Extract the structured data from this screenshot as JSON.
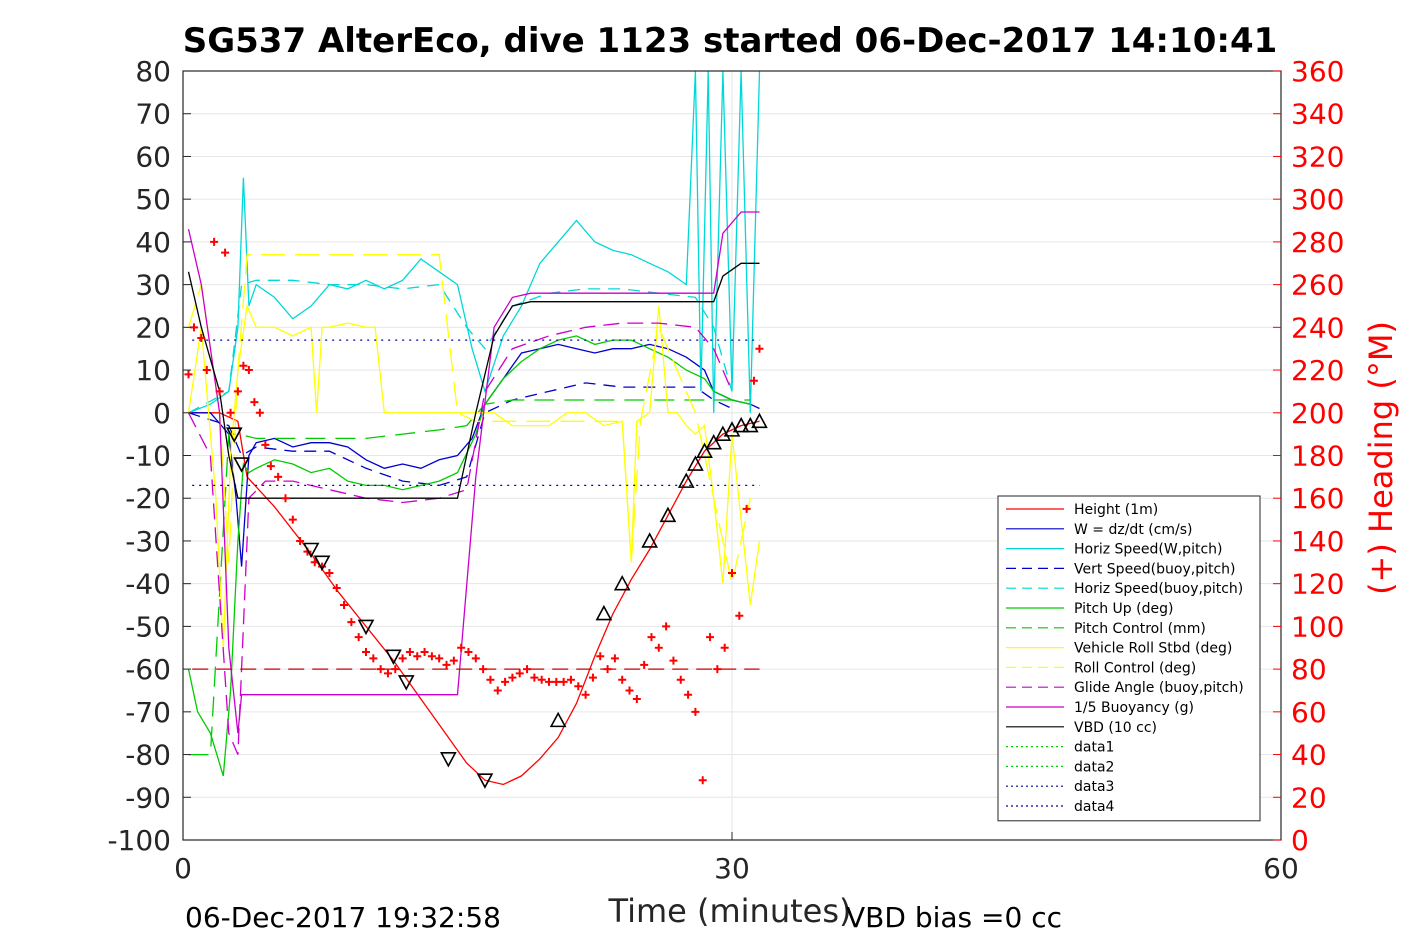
{
  "chart_data": {
    "type": "line",
    "title": "SG537 AlterEco, dive 1123 started 06-Dec-2017 14:10:41",
    "xlabel": "Time (minutes)",
    "ylabel": "",
    "y2label": "(+) Heading (°M)",
    "xlim": [
      0,
      60
    ],
    "ylim": [
      -100,
      80
    ],
    "y2lim": [
      0,
      360
    ],
    "xticks": [
      "0",
      "30",
      "60"
    ],
    "yticks": [
      "80",
      "70",
      "60",
      "50",
      "40",
      "30",
      "20",
      "10",
      "0",
      "-10",
      "-20",
      "-30",
      "-40",
      "-50",
      "-60",
      "-70",
      "-80",
      "-90",
      "-100"
    ],
    "y2ticks": [
      "360",
      "340",
      "320",
      "300",
      "280",
      "260",
      "240",
      "220",
      "200",
      "180",
      "160",
      "140",
      "120",
      "100",
      "80",
      "60",
      "40",
      "20",
      "0"
    ],
    "footer_left": "06-Dec-2017 19:32:58",
    "footer_right": "VBD bias =0 cc",
    "legend": [
      {
        "label": "Height (1m)",
        "color": "#ff0000",
        "style": "solid"
      },
      {
        "label": "W = dz/dt (cm/s)",
        "color": "#0000cc",
        "style": "solid"
      },
      {
        "label": "Horiz Speed(W,pitch)",
        "color": "#00d8d8",
        "style": "solid"
      },
      {
        "label": "Vert Speed(buoy,pitch)",
        "color": "#0000cc",
        "style": "dashed"
      },
      {
        "label": "Horiz Speed(buoy,pitch)",
        "color": "#00d8d8",
        "style": "dashed"
      },
      {
        "label": "Pitch Up (deg)",
        "color": "#00cc00",
        "style": "solid"
      },
      {
        "label": "Pitch Control (mm)",
        "color": "#00cc00",
        "style": "dashed"
      },
      {
        "label": "Vehicle Roll Stbd (deg)",
        "color": "#ffff00",
        "style": "solid"
      },
      {
        "label": "Roll Control (deg)",
        "color": "#ffff00",
        "style": "dashed"
      },
      {
        "label": "Glide Angle (buoy,pitch)",
        "color": "#cc00cc",
        "style": "dashed"
      },
      {
        "label": "1/5 Buoyancy (g)",
        "color": "#cc00cc",
        "style": "solid"
      },
      {
        "label": "VBD (10 cc)",
        "color": "#000000",
        "style": "solid"
      },
      {
        "label": "data1",
        "color": "#00cc00",
        "style": "dotted"
      },
      {
        "label": "data2",
        "color": "#00cc00",
        "style": "dotted"
      },
      {
        "label": "data3",
        "color": "#0000aa",
        "style": "dotted"
      },
      {
        "label": "data4",
        "color": "#0000aa",
        "style": "dotted"
      }
    ],
    "series": [
      {
        "name": "Height (1m)",
        "color": "#ff0000",
        "dash": "",
        "axis": "left",
        "x": [
          0.3,
          1.0,
          2.0,
          3.0,
          3.5,
          5.0,
          7.0,
          8.5,
          10.0,
          11.5,
          13.0,
          14.5,
          15.5,
          16.5,
          17.5,
          18.5,
          19.5,
          20.5,
          21.5,
          22.5,
          23.5,
          24.5,
          25.5,
          26.5,
          27.5,
          28.5,
          29.5,
          30.5,
          31.5
        ],
        "y": [
          0,
          0,
          0,
          -2,
          -15,
          -22,
          -33,
          -42,
          -50,
          -58,
          -67,
          -76,
          -82,
          -86,
          -87,
          -85,
          -81,
          -76,
          -68,
          -57,
          -47,
          -39,
          -32,
          -24,
          -16,
          -9,
          -5,
          -3,
          -2
        ]
      },
      {
        "name": "W = dz/dt (cm/s)",
        "color": "#0000cc",
        "dash": "",
        "axis": "left",
        "x": [
          0.3,
          1.5,
          2.5,
          2.9,
          3.2,
          3.6,
          4.0,
          5.0,
          6.0,
          7.0,
          8.0,
          9.0,
          10.0,
          11.0,
          12.0,
          13.0,
          14.0,
          15.0,
          15.8,
          16.5,
          17.5,
          18.5,
          19.5,
          20.5,
          21.5,
          22.5,
          23.5,
          24.5,
          25.5,
          26.5,
          27.5,
          28.5,
          29.0,
          30.0,
          31.0,
          31.5
        ],
        "y": [
          0,
          0,
          -5,
          -20,
          -36,
          -10,
          -7,
          -6,
          -8,
          -7,
          -7,
          -8,
          -11,
          -13,
          -12,
          -13,
          -11,
          -10,
          -6,
          2,
          8,
          14,
          15,
          16,
          15,
          14,
          15,
          15,
          16,
          15,
          13,
          10,
          5,
          3,
          2,
          1
        ]
      },
      {
        "name": "Horiz Speed(W,pitch)",
        "color": "#00d8d8",
        "dash": "",
        "axis": "left",
        "x": [
          0.3,
          1.5,
          2.5,
          3.0,
          3.3,
          3.6,
          4.0,
          5.0,
          6.0,
          7.0,
          8.0,
          9.0,
          10.0,
          11.0,
          12.0,
          13.0,
          14.0,
          15.0,
          15.8,
          16.5,
          17.5,
          18.5,
          19.5,
          20.5,
          21.5,
          22.5,
          23.5,
          24.5,
          25.5,
          26.5,
          27.5,
          28.0,
          28.3,
          28.7,
          29.0,
          29.5,
          30.0,
          30.5,
          31.0,
          31.5
        ],
        "y": [
          0,
          2,
          5,
          20,
          55,
          25,
          30,
          27,
          22,
          25,
          30,
          29,
          31,
          29,
          31,
          36,
          33,
          30,
          15,
          5,
          18,
          25,
          35,
          40,
          45,
          40,
          38,
          37,
          35,
          33,
          30,
          80,
          5,
          80,
          0,
          80,
          5,
          80,
          0,
          80
        ]
      },
      {
        "name": "Vert Speed(buoy,pitch)",
        "color": "#0000cc",
        "dash": "12,8",
        "axis": "left",
        "x": [
          0.3,
          2.5,
          3.2,
          4.0,
          6.0,
          8.0,
          10.0,
          12.0,
          14.0,
          15.5,
          16.5,
          18.0,
          20.0,
          22.0,
          24.0,
          26.0,
          28.0,
          29.0,
          30.0
        ],
        "y": [
          0,
          -3,
          -10,
          -8,
          -9,
          -9,
          -13,
          -16,
          -17,
          -15,
          0,
          3,
          5,
          7,
          6,
          6,
          6,
          3,
          1
        ]
      },
      {
        "name": "Horiz Speed(buoy,pitch)",
        "color": "#00d8d8",
        "dash": "12,8",
        "axis": "left",
        "x": [
          0.3,
          2.5,
          3.2,
          4.0,
          6.0,
          8.0,
          10.0,
          12.0,
          14.0,
          15.5,
          16.5,
          18.0,
          20.0,
          22.0,
          24.0,
          26.0,
          28.0,
          29.0,
          30.0
        ],
        "y": [
          0,
          5,
          30,
          31,
          31,
          30,
          30,
          29,
          30,
          20,
          15,
          25,
          28,
          29,
          29,
          28,
          27,
          20,
          5
        ]
      },
      {
        "name": "Pitch Up (deg)",
        "color": "#00cc00",
        "dash": "",
        "axis": "left",
        "x": [
          0.3,
          0.8,
          1.5,
          2.2,
          2.6,
          3.0,
          3.3,
          3.6,
          4.0,
          5.0,
          6.0,
          7.0,
          8.0,
          9.0,
          10.0,
          11.0,
          12.0,
          13.0,
          14.0,
          15.0,
          16.0,
          16.5,
          17.5,
          18.5,
          19.5,
          20.5,
          21.5,
          22.5,
          23.5,
          24.5,
          25.5,
          26.5,
          27.5,
          28.5,
          29.0,
          30.0,
          31.0
        ],
        "y": [
          -60,
          -70,
          -75,
          -85,
          -65,
          -30,
          -12,
          -14,
          -13,
          -11,
          -12,
          -14,
          -13,
          -16,
          -17,
          -17,
          -18,
          -17,
          -16,
          -14,
          -5,
          2,
          8,
          12,
          15,
          17,
          18,
          16,
          17,
          17,
          15,
          13,
          10,
          8,
          5,
          3,
          2
        ]
      },
      {
        "name": "Pitch Control (mm)",
        "color": "#00cc00",
        "dash": "20,10",
        "axis": "left",
        "x": [
          0.3,
          1.5,
          2.5,
          3.0,
          4.0,
          6.0,
          8.0,
          10.0,
          12.0,
          14.0,
          15.5,
          16.5,
          18.0,
          20.0,
          22.0,
          24.0,
          26.0,
          28.0,
          29.0,
          30.0,
          31.0
        ],
        "y": [
          -80,
          -80,
          -5,
          -5,
          -6,
          -6,
          -6,
          -6,
          -5,
          -4,
          -3,
          2,
          3,
          3,
          3,
          3,
          3,
          3,
          3,
          3,
          3
        ]
      },
      {
        "name": "Vehicle Roll Stbd (deg)",
        "color": "#ffff00",
        "dash": "",
        "axis": "left",
        "x": [
          0.3,
          1.0,
          1.8,
          2.2,
          2.6,
          3.0,
          3.5,
          4.0,
          5.0,
          6.0,
          7.0,
          7.3,
          7.6,
          8.0,
          9.0,
          10.0,
          10.5,
          11.0,
          12.0,
          13.0,
          14.0,
          15.0,
          16.0,
          17.0,
          18.0,
          19.0,
          20.0,
          21.0,
          22.0,
          23.0,
          24.0,
          24.5,
          24.8,
          25.5,
          26.0,
          26.5,
          27.0,
          27.5,
          28.0,
          28.5,
          29.0,
          29.5,
          30.0,
          30.5,
          31.0,
          31.5
        ],
        "y": [
          0,
          20,
          -20,
          -55,
          -10,
          10,
          25,
          20,
          20,
          18,
          20,
          0,
          20,
          20,
          21,
          20,
          20,
          0,
          0,
          0,
          0,
          0,
          0,
          0,
          -3,
          -3,
          -3,
          0,
          0,
          -3,
          -2,
          -35,
          -2,
          0,
          25,
          0,
          0,
          -3,
          -5,
          -3,
          -20,
          -40,
          -5,
          -25,
          -45,
          -30
        ]
      },
      {
        "name": "Roll Control (deg)",
        "color": "#ffff00",
        "dash": "24,10",
        "axis": "left",
        "x": [
          0.3,
          1.0,
          2.0,
          2.5,
          3.0,
          3.5,
          4.0,
          6.0,
          8.0,
          10.0,
          12.0,
          14.0,
          15.0,
          16.0,
          18.0,
          20.0,
          22.0,
          24.0,
          24.5,
          25.0,
          26.0,
          28.0,
          29.0,
          30.0,
          31.0
        ],
        "y": [
          20,
          30,
          0,
          -35,
          10,
          37,
          37,
          37,
          37,
          37,
          37,
          37,
          0,
          -2,
          -2,
          -2,
          -2,
          -2,
          -35,
          -2,
          20,
          0,
          -20,
          -40,
          -20
        ]
      },
      {
        "name": "Glide Angle (buoy,pitch)",
        "color": "#cc00cc",
        "dash": "16,8",
        "axis": "left",
        "x": [
          0.3,
          1.5,
          2.5,
          3.0,
          3.6,
          4.5,
          6.0,
          8.0,
          10.0,
          12.0,
          14.0,
          15.5,
          16.5,
          18.0,
          20.0,
          22.0,
          24.0,
          26.0,
          28.0,
          29.0,
          30.0
        ],
        "y": [
          0,
          -10,
          -75,
          -80,
          -20,
          -16,
          -16,
          -18,
          -20,
          -21,
          -20,
          -18,
          5,
          15,
          18,
          20,
          21,
          21,
          20,
          15,
          5
        ]
      },
      {
        "name": "1/5 Buoyancy (g)",
        "color": "#cc00cc",
        "dash": "",
        "axis": "left",
        "x": [
          0.3,
          1.0,
          2.0,
          2.5,
          3.0,
          3.2,
          5.0,
          8.0,
          10.0,
          12.0,
          14.0,
          15.0,
          16.0,
          17.0,
          18.0,
          19.0,
          20.0,
          22.0,
          24.0,
          26.0,
          28.0,
          29.0,
          29.5,
          30.5,
          31.0,
          31.5
        ],
        "y": [
          43,
          30,
          0,
          -55,
          -75,
          -66,
          -66,
          -66,
          -66,
          -66,
          -66,
          -66,
          -15,
          20,
          27,
          28,
          28,
          28,
          28,
          28,
          28,
          28,
          42,
          47,
          47,
          47
        ]
      },
      {
        "name": "VBD (10 cc)",
        "color": "#000000",
        "dash": "",
        "axis": "left",
        "x": [
          0.3,
          1.0,
          2.0,
          2.5,
          3.0,
          5.0,
          8.0,
          10.0,
          12.0,
          14.0,
          15.0,
          16.0,
          17.0,
          18.0,
          19.0,
          20.0,
          22.0,
          24.0,
          26.0,
          28.0,
          29.0,
          29.5,
          30.5,
          31.0,
          31.5
        ],
        "y": [
          33,
          20,
          5,
          -10,
          -20,
          -20,
          -20,
          -20,
          -20,
          -20,
          -20,
          0,
          18,
          25,
          26,
          26,
          26,
          26,
          26,
          26,
          26,
          32,
          35,
          35,
          35
        ]
      },
      {
        "name": "data1",
        "color": "#00cc00",
        "dash": "2,5",
        "axis": "left",
        "x": [],
        "y": []
      },
      {
        "name": "data2",
        "color": "#00cc00",
        "dash": "2,5",
        "axis": "left",
        "x": [],
        "y": []
      },
      {
        "name": "data3",
        "color": "#0000aa",
        "dash": "2,5",
        "axis": "left",
        "x": [
          0.5,
          31.5
        ],
        "y": [
          17,
          17
        ]
      },
      {
        "name": "data4",
        "color": "#0000aa",
        "dash": "2,5",
        "axis": "left",
        "x": [
          0.5,
          31.5
        ],
        "y": [
          -17,
          -17
        ]
      },
      {
        "name": "",
        "color": "#cc0000",
        "dash": "16,8",
        "axis": "left",
        "x": [
          0.5,
          31.5
        ],
        "y": [
          -60,
          -60
        ]
      }
    ],
    "heading_points": {
      "color": "#ff0000",
      "axis": "right",
      "x": [
        0.3,
        0.6,
        1.0,
        1.3,
        1.7,
        2.0,
        2.3,
        2.6,
        3.0,
        3.3,
        3.6,
        3.9,
        4.2,
        4.5,
        4.8,
        5.2,
        5.6,
        6.0,
        6.4,
        6.8,
        7.2,
        7.6,
        8.0,
        8.4,
        8.8,
        9.2,
        9.6,
        10.0,
        10.4,
        10.8,
        11.2,
        11.6,
        12.0,
        12.4,
        12.8,
        13.2,
        13.6,
        14.0,
        14.4,
        14.8,
        15.2,
        15.6,
        16.0,
        16.4,
        16.8,
        17.2,
        17.6,
        18.0,
        18.4,
        18.8,
        19.2,
        19.6,
        20.0,
        20.4,
        20.8,
        21.2,
        21.6,
        22.0,
        22.4,
        22.8,
        23.2,
        23.6,
        24.0,
        24.4,
        24.8,
        25.2,
        25.6,
        26.0,
        26.4,
        26.8,
        27.2,
        27.6,
        28.0,
        28.4,
        28.8,
        29.2,
        29.6,
        30.0,
        30.4,
        30.8,
        31.2,
        31.5
      ],
      "y": [
        218,
        240,
        235,
        220,
        280,
        210,
        275,
        200,
        210,
        222,
        220,
        205,
        200,
        185,
        175,
        170,
        160,
        150,
        140,
        135,
        130,
        128,
        125,
        118,
        110,
        102,
        95,
        88,
        85,
        80,
        78,
        80,
        85,
        88,
        86,
        88,
        86,
        85,
        82,
        84,
        90,
        88,
        85,
        80,
        75,
        70,
        74,
        76,
        78,
        80,
        76,
        75,
        74,
        74,
        74,
        75,
        72,
        68,
        76,
        86,
        80,
        85,
        75,
        70,
        66,
        82,
        95,
        90,
        100,
        84,
        75,
        68,
        60,
        28,
        95,
        80,
        90,
        125,
        105,
        155,
        215,
        230
      ]
    },
    "triangle_markers": {
      "color": "#000000",
      "axis": "left",
      "x": [
        2.8,
        3.2,
        7.0,
        7.6,
        10.0,
        11.5,
        12.2,
        14.5,
        16.5,
        20.5,
        23.0,
        24.0,
        25.5,
        26.5,
        27.5,
        28.0,
        28.5,
        29.0,
        29.5,
        30.0,
        30.5,
        31.0,
        31.5
      ],
      "y": [
        -5,
        -12,
        -32,
        -35,
        -50,
        -57,
        -63,
        -81,
        -86,
        -72,
        -47,
        -40,
        -30,
        -24,
        -16,
        -12,
        -9,
        -7,
        -5,
        -4,
        -3,
        -3,
        -2
      ]
    }
  }
}
